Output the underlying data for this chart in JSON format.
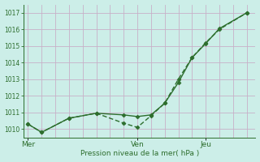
{
  "xlabel": "Pression niveau de la mer( hPa )",
  "bg_color": "#cceee8",
  "line_color": "#2d6e2d",
  "grid_color_v": "#c8b0c8",
  "grid_color_h": "#b8d8d0",
  "ylim": [
    1009.5,
    1017.5
  ],
  "yticks": [
    1010,
    1011,
    1012,
    1013,
    1014,
    1015,
    1016,
    1017
  ],
  "xtick_labels": [
    "Mer",
    "Ven",
    "Jeu"
  ],
  "xtick_positions": [
    0.0,
    0.5,
    0.8125
  ],
  "x_vlines": [
    0.0,
    0.5,
    0.8125
  ],
  "line1_x": [
    0.0,
    0.0625,
    0.1875,
    0.3125,
    0.4375,
    0.5,
    0.5625,
    0.625,
    0.6875,
    0.75,
    0.8125,
    0.875,
    1.0
  ],
  "line1_y": [
    1010.3,
    1009.8,
    1010.65,
    1010.95,
    1010.85,
    1010.75,
    1010.85,
    1011.55,
    1012.8,
    1014.3,
    1015.15,
    1016.05,
    1017.0
  ],
  "line2_x": [
    0.0,
    0.0625,
    0.1875,
    0.3125,
    0.4375,
    0.5,
    0.5625,
    0.625,
    0.6875,
    0.75,
    0.8125,
    0.875,
    1.0
  ],
  "line2_y": [
    1010.3,
    1009.8,
    1010.65,
    1010.95,
    1010.35,
    1010.1,
    1010.8,
    1011.55,
    1013.0,
    1014.3,
    1015.2,
    1016.0,
    1017.0
  ],
  "marker_size": 2.5,
  "line_width": 1.0,
  "figwidth": 3.2,
  "figheight": 2.0,
  "dpi": 100
}
